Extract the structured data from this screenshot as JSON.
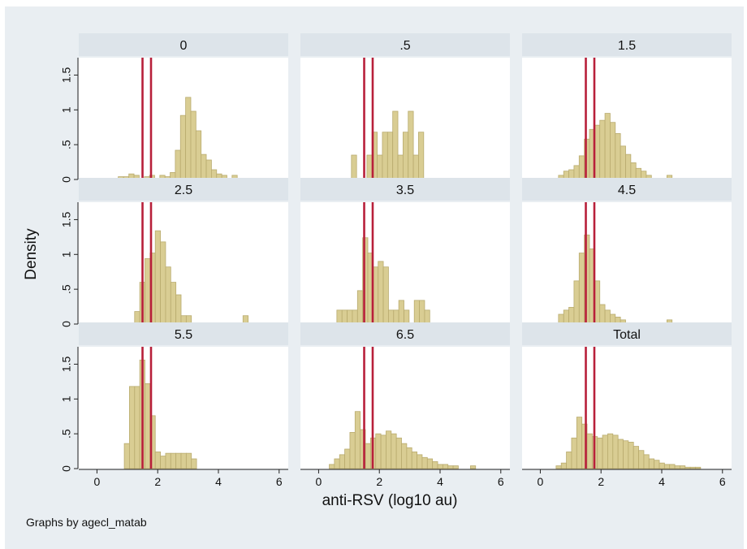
{
  "chart_data": {
    "type": "histogram",
    "by_variable": "agecl_matab",
    "xlabel": "anti-RSV (log10 au)",
    "ylabel": "Density",
    "note": "Graphs by agecl_matab",
    "xlim": [
      -0.6,
      6.3
    ],
    "ylim": [
      0,
      1.75
    ],
    "xticks": [
      0,
      2,
      4,
      6
    ],
    "yticks": [
      0,
      0.5,
      1,
      1.5
    ],
    "ytick_labels": [
      "0",
      ".5",
      "1",
      "1.5"
    ],
    "bin_width": 0.17,
    "reference_lines_x": [
      1.5,
      1.78
    ],
    "colors": {
      "background": "#e9eef2",
      "plot_area": "#ffffff",
      "strip": "#dde4ea",
      "bar_fill": "#d9cd93",
      "bar_edge": "#b9ab6e",
      "ref_line": "#b8203a"
    },
    "panels": [
      {
        "label": "0",
        "bins": [
          [
            0.7,
            0.04
          ],
          [
            0.88,
            0.04
          ],
          [
            1.05,
            0.08
          ],
          [
            1.22,
            0.06
          ],
          [
            1.56,
            0.04
          ],
          [
            1.73,
            0.06
          ],
          [
            2.07,
            0.06
          ],
          [
            2.24,
            0.04
          ],
          [
            2.41,
            0.1
          ],
          [
            2.58,
            0.42
          ],
          [
            2.75,
            0.92
          ],
          [
            2.92,
            1.18
          ],
          [
            3.09,
            0.98
          ],
          [
            3.26,
            0.7
          ],
          [
            3.43,
            0.36
          ],
          [
            3.6,
            0.28
          ],
          [
            3.77,
            0.14
          ],
          [
            3.94,
            0.08
          ],
          [
            4.11,
            0.06
          ],
          [
            4.45,
            0.06
          ]
        ]
      },
      {
        "label": ".5",
        "bins": [
          [
            1.08,
            0.35
          ],
          [
            1.59,
            0.35
          ],
          [
            1.76,
            0.68
          ],
          [
            1.93,
            0.35
          ],
          [
            2.1,
            0.68
          ],
          [
            2.27,
            0.68
          ],
          [
            2.44,
            0.98
          ],
          [
            2.61,
            0.35
          ],
          [
            2.78,
            0.68
          ],
          [
            2.95,
            0.98
          ],
          [
            3.12,
            0.35
          ],
          [
            3.29,
            0.68
          ]
        ]
      },
      {
        "label": "1.5",
        "bins": [
          [
            0.6,
            0.06
          ],
          [
            0.77,
            0.12
          ],
          [
            0.94,
            0.14
          ],
          [
            1.11,
            0.2
          ],
          [
            1.28,
            0.34
          ],
          [
            1.45,
            0.58
          ],
          [
            1.62,
            0.72
          ],
          [
            1.79,
            0.78
          ],
          [
            1.96,
            0.85
          ],
          [
            2.13,
            0.95
          ],
          [
            2.3,
            0.82
          ],
          [
            2.47,
            0.66
          ],
          [
            2.64,
            0.48
          ],
          [
            2.81,
            0.36
          ],
          [
            2.98,
            0.24
          ],
          [
            3.15,
            0.16
          ],
          [
            3.32,
            0.12
          ],
          [
            3.49,
            0.06
          ],
          [
            4.17,
            0.06
          ]
        ]
      },
      {
        "label": "2.5",
        "bins": [
          [
            1.24,
            0.18
          ],
          [
            1.41,
            0.6
          ],
          [
            1.58,
            0.94
          ],
          [
            1.75,
            1.02
          ],
          [
            1.92,
            1.34
          ],
          [
            2.09,
            1.18
          ],
          [
            2.26,
            0.82
          ],
          [
            2.43,
            0.6
          ],
          [
            2.6,
            0.42
          ],
          [
            2.77,
            0.12
          ],
          [
            2.94,
            0.12
          ],
          [
            4.81,
            0.12
          ]
        ]
      },
      {
        "label": "3.5",
        "bins": [
          [
            0.6,
            0.2
          ],
          [
            0.77,
            0.2
          ],
          [
            0.94,
            0.2
          ],
          [
            1.11,
            0.2
          ],
          [
            1.28,
            0.48
          ],
          [
            1.45,
            1.24
          ],
          [
            1.62,
            1.02
          ],
          [
            1.79,
            0.82
          ],
          [
            1.96,
            0.9
          ],
          [
            2.13,
            0.82
          ],
          [
            2.3,
            0.2
          ],
          [
            2.47,
            0.2
          ],
          [
            2.64,
            0.34
          ],
          [
            2.81,
            0.2
          ],
          [
            3.15,
            0.34
          ],
          [
            3.32,
            0.34
          ],
          [
            3.49,
            0.2
          ]
        ]
      },
      {
        "label": "4.5",
        "bins": [
          [
            0.6,
            0.14
          ],
          [
            0.77,
            0.2
          ],
          [
            0.94,
            0.24
          ],
          [
            1.11,
            0.62
          ],
          [
            1.28,
            1.02
          ],
          [
            1.45,
            1.28
          ],
          [
            1.62,
            1.08
          ],
          [
            1.79,
            0.62
          ],
          [
            1.96,
            0.28
          ],
          [
            2.13,
            0.2
          ],
          [
            2.3,
            0.14
          ],
          [
            2.47,
            0.1
          ],
          [
            2.64,
            0.06
          ],
          [
            4.17,
            0.06
          ]
        ]
      },
      {
        "label": "5.5",
        "bins": [
          [
            0.9,
            0.36
          ],
          [
            1.07,
            1.18
          ],
          [
            1.24,
            1.18
          ],
          [
            1.41,
            1.56
          ],
          [
            1.58,
            1.22
          ],
          [
            1.75,
            0.76
          ],
          [
            1.92,
            0.24
          ],
          [
            2.09,
            0.18
          ],
          [
            2.26,
            0.22
          ],
          [
            2.43,
            0.22
          ],
          [
            2.6,
            0.22
          ],
          [
            2.77,
            0.22
          ],
          [
            2.94,
            0.22
          ],
          [
            3.11,
            0.14
          ]
        ]
      },
      {
        "label": "6.5",
        "bins": [
          [
            0.35,
            0.06
          ],
          [
            0.52,
            0.14
          ],
          [
            0.69,
            0.2
          ],
          [
            0.86,
            0.28
          ],
          [
            1.03,
            0.52
          ],
          [
            1.2,
            0.82
          ],
          [
            1.37,
            0.56
          ],
          [
            1.54,
            0.36
          ],
          [
            1.71,
            0.44
          ],
          [
            1.88,
            0.5
          ],
          [
            2.05,
            0.48
          ],
          [
            2.22,
            0.54
          ],
          [
            2.39,
            0.5
          ],
          [
            2.56,
            0.44
          ],
          [
            2.73,
            0.36
          ],
          [
            2.9,
            0.3
          ],
          [
            3.07,
            0.24
          ],
          [
            3.24,
            0.2
          ],
          [
            3.41,
            0.16
          ],
          [
            3.58,
            0.14
          ],
          [
            3.75,
            0.1
          ],
          [
            3.92,
            0.06
          ],
          [
            4.09,
            0.06
          ],
          [
            4.26,
            0.04
          ],
          [
            4.43,
            0.04
          ],
          [
            5.0,
            0.04
          ]
        ]
      },
      {
        "label": "Total",
        "bins": [
          [
            0.52,
            0.04
          ],
          [
            0.69,
            0.08
          ],
          [
            0.86,
            0.24
          ],
          [
            1.03,
            0.44
          ],
          [
            1.2,
            0.74
          ],
          [
            1.37,
            0.64
          ],
          [
            1.54,
            0.5
          ],
          [
            1.71,
            0.46
          ],
          [
            1.88,
            0.44
          ],
          [
            2.05,
            0.48
          ],
          [
            2.22,
            0.5
          ],
          [
            2.39,
            0.48
          ],
          [
            2.56,
            0.42
          ],
          [
            2.73,
            0.4
          ],
          [
            2.9,
            0.38
          ],
          [
            3.07,
            0.32
          ],
          [
            3.24,
            0.26
          ],
          [
            3.41,
            0.2
          ],
          [
            3.58,
            0.14
          ],
          [
            3.75,
            0.12
          ],
          [
            3.92,
            0.08
          ],
          [
            4.09,
            0.06
          ],
          [
            4.26,
            0.06
          ],
          [
            4.43,
            0.04
          ],
          [
            4.6,
            0.04
          ],
          [
            4.77,
            0.02
          ],
          [
            4.94,
            0.02
          ],
          [
            5.11,
            0.02
          ]
        ]
      }
    ]
  }
}
